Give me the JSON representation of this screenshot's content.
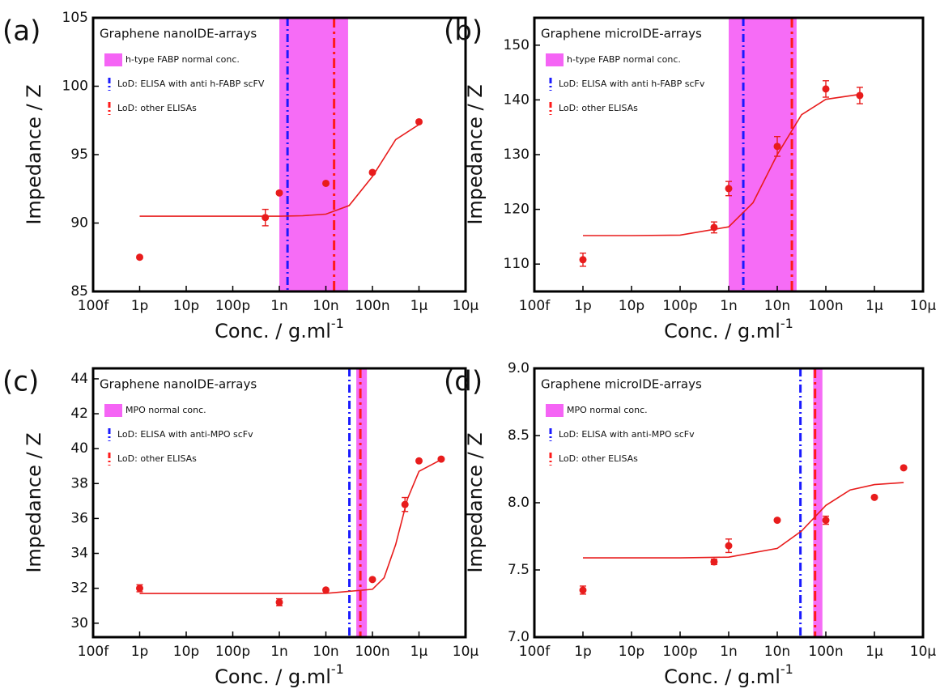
{
  "chart_data": [
    {
      "panel": "(a)",
      "type": "scatter",
      "title": "Graphene nanoIDE-arrays",
      "xlabel": "Conc. / g.ml",
      "xlabel_sup": "-1",
      "ylabel": "Impedance / Z",
      "log_x": true,
      "xlim": [
        1e-13,
        1e-05
      ],
      "xticks": [
        {
          "value": 1e-13,
          "label": "100f"
        },
        {
          "value": 1e-12,
          "label": "1p"
        },
        {
          "value": 1e-11,
          "label": "10p"
        },
        {
          "value": 1e-10,
          "label": "100p"
        },
        {
          "value": 1e-09,
          "label": "1n"
        },
        {
          "value": 1e-08,
          "label": "10n"
        },
        {
          "value": 1e-07,
          "label": "100n"
        },
        {
          "value": 1e-06,
          "label": "1μ"
        },
        {
          "value": 1e-05,
          "label": "10μ"
        }
      ],
      "ylim": [
        85,
        105
      ],
      "yticks": [
        85,
        90,
        95,
        100,
        105
      ],
      "x": [
        1e-12,
        5e-10,
        1e-09,
        1e-08,
        1e-07,
        1e-06
      ],
      "values": [
        87.5,
        90.4,
        92.2,
        92.9,
        93.7,
        97.4
      ],
      "errors": [
        0.1,
        0.6,
        0.1,
        0.1,
        0.1,
        0.1
      ],
      "color": "#e81c1c",
      "fit": {
        "x": [
          1e-12,
          1e-11,
          1e-10,
          1e-09,
          3.16e-09,
          1e-08,
          3.16e-08,
          1e-07,
          3.16e-07,
          1e-06
        ],
        "values": [
          90.5,
          90.5,
          90.5,
          90.5,
          90.53,
          90.65,
          91.28,
          93.4,
          96.1,
          97.2
        ],
        "color": "#e81c1c"
      },
      "band": {
        "name": "h-type FABP normal conc.",
        "range": [
          1e-09,
          3e-08
        ],
        "color": "#f564f5"
      },
      "lines": [
        {
          "name": "LoD: ELISA with anti h-FABP scFV",
          "x": 1.5e-09,
          "color": "#1a1aff"
        },
        {
          "name": "LoD: other ELISAs",
          "x": 1.5e-08,
          "color": "#ff1a1a"
        }
      ]
    },
    {
      "panel": "(b)",
      "type": "scatter",
      "title": "Graphene microIDE-arrays",
      "xlabel": "Conc. / g.ml",
      "xlabel_sup": "-1",
      "ylabel": "Impedance / Z",
      "log_x": true,
      "xlim": [
        1e-13,
        1e-05
      ],
      "xticks": [
        {
          "value": 1e-13,
          "label": "100f"
        },
        {
          "value": 1e-12,
          "label": "1p"
        },
        {
          "value": 1e-11,
          "label": "10p"
        },
        {
          "value": 1e-10,
          "label": "100p"
        },
        {
          "value": 1e-09,
          "label": "1n"
        },
        {
          "value": 1e-08,
          "label": "10n"
        },
        {
          "value": 1e-07,
          "label": "100n"
        },
        {
          "value": 1e-06,
          "label": "1μ"
        },
        {
          "value": 1e-05,
          "label": "10μ"
        }
      ],
      "ylim": [
        105,
        155
      ],
      "yticks": [
        110,
        120,
        130,
        140,
        150
      ],
      "x": [
        1e-12,
        5e-10,
        1e-09,
        1e-08,
        1e-07,
        5e-07
      ],
      "values": [
        110.8,
        116.7,
        123.8,
        131.5,
        142,
        140.8
      ],
      "errors": [
        1.2,
        1,
        1.3,
        1.8,
        1.5,
        1.5
      ],
      "color": "#e81c1c",
      "fit": {
        "x": [
          1e-12,
          1e-11,
          1e-10,
          1e-09,
          3.16e-09,
          1e-08,
          3.16e-08,
          1e-07,
          5e-07
        ],
        "values": [
          115.2,
          115.2,
          115.3,
          116.8,
          121.2,
          130.0,
          137.3,
          140.1,
          141
        ],
        "color": "#e81c1c"
      },
      "band": {
        "name": "h-type FABP normal conc.",
        "range": [
          1e-09,
          2.5e-08
        ],
        "color": "#f564f5"
      },
      "lines": [
        {
          "name": "LoD: ELISA with anti h-FABP scFv",
          "x": 2e-09,
          "color": "#1a1aff"
        },
        {
          "name": "LoD: other ELISAs",
          "x": 2e-08,
          "color": "#ff1a1a"
        }
      ]
    },
    {
      "panel": "(c)",
      "type": "scatter",
      "title": "Graphene nanoIDE-arrays",
      "xlabel": "Conc. / g.ml",
      "xlabel_sup": "-1",
      "ylabel": "Impedance / Z",
      "log_x": true,
      "xlim": [
        1e-13,
        1e-05
      ],
      "xticks": [
        {
          "value": 1e-13,
          "label": "100f"
        },
        {
          "value": 1e-12,
          "label": "1p"
        },
        {
          "value": 1e-11,
          "label": "10p"
        },
        {
          "value": 1e-10,
          "label": "100p"
        },
        {
          "value": 1e-09,
          "label": "1n"
        },
        {
          "value": 1e-08,
          "label": "10n"
        },
        {
          "value": 1e-07,
          "label": "100n"
        },
        {
          "value": 1e-06,
          "label": "1μ"
        },
        {
          "value": 1e-05,
          "label": "10μ"
        }
      ],
      "ylim": [
        29.2,
        44.6
      ],
      "yticks": [
        30,
        32,
        34,
        36,
        38,
        40,
        42,
        44
      ],
      "x": [
        1e-12,
        1e-09,
        1e-08,
        1e-07,
        5e-07,
        1e-06,
        3e-06
      ],
      "values": [
        32.0,
        31.2,
        31.9,
        32.5,
        36.8,
        39.3,
        39.4
      ],
      "errors": [
        0.2,
        0.2,
        0.05,
        0.05,
        0.4,
        0.05,
        0.05
      ],
      "color": "#e81c1c",
      "fit": {
        "x": [
          1e-12,
          1e-10,
          1e-08,
          1e-07,
          1.78e-07,
          3.16e-07,
          5.62e-07,
          1e-06,
          3.16e-06
        ],
        "values": [
          31.7,
          31.7,
          31.71,
          31.94,
          32.6,
          34.5,
          37.1,
          38.7,
          39.4
        ],
        "color": "#e81c1c"
      },
      "band": {
        "name": "MPO normal conc.",
        "range": [
          4.5e-08,
          7.6e-08
        ],
        "color": "#f564f5"
      },
      "lines": [
        {
          "name": "LoD: ELISA with anti-MPO scFv",
          "x": 3.2e-08,
          "color": "#1a1aff"
        },
        {
          "name": "LoD: other ELISAs",
          "x": 5.5e-08,
          "color": "#ff1a1a"
        }
      ]
    },
    {
      "panel": "(d)",
      "type": "scatter",
      "title": "Graphene microIDE-arrays",
      "xlabel": "Conc. / g.ml",
      "xlabel_sup": "-1",
      "ylabel": "Impedance / Z",
      "log_x": true,
      "xlim": [
        1e-13,
        1e-05
      ],
      "xticks": [
        {
          "value": 1e-13,
          "label": "100f"
        },
        {
          "value": 1e-12,
          "label": "1p"
        },
        {
          "value": 1e-11,
          "label": "10p"
        },
        {
          "value": 1e-10,
          "label": "100p"
        },
        {
          "value": 1e-09,
          "label": "1n"
        },
        {
          "value": 1e-08,
          "label": "10n"
        },
        {
          "value": 1e-07,
          "label": "100n"
        },
        {
          "value": 1e-06,
          "label": "1μ"
        },
        {
          "value": 1e-05,
          "label": "10μ"
        }
      ],
      "ylim": [
        7.0,
        9.0
      ],
      "yticks": [
        {
          "value": 7.0,
          "label": "7.0"
        },
        7.5,
        {
          "value": 8.0,
          "label": "8.0"
        },
        8.5,
        {
          "value": 9.0,
          "label": "9.0"
        }
      ],
      "x": [
        1e-12,
        5e-10,
        1e-09,
        1e-08,
        1e-07,
        1e-06,
        4e-06
      ],
      "values": [
        7.35,
        7.56,
        7.68,
        7.87,
        7.87,
        8.04,
        8.26
      ],
      "errors": [
        0.03,
        0.02,
        0.05,
        0.005,
        0.03,
        0.005,
        0.005
      ],
      "color": "#e81c1c",
      "fit": {
        "x": [
          1e-12,
          1e-10,
          1e-09,
          1e-08,
          3.16e-08,
          1e-07,
          3.16e-07,
          1e-06,
          4e-06
        ],
        "values": [
          7.59,
          7.59,
          7.595,
          7.66,
          7.79,
          7.98,
          8.095,
          8.135,
          8.15
        ],
        "color": "#e81c1c"
      },
      "band": {
        "name": "MPO normal conc.",
        "range": [
          5.5e-08,
          8.5e-08
        ],
        "color": "#f564f5"
      },
      "lines": [
        {
          "name": "LoD: ELISA with anti-MPO scFv",
          "x": 3e-08,
          "color": "#1a1aff"
        },
        {
          "name": "LoD: other ELISAs",
          "x": 6e-08,
          "color": "#ff1a1a"
        }
      ]
    }
  ]
}
